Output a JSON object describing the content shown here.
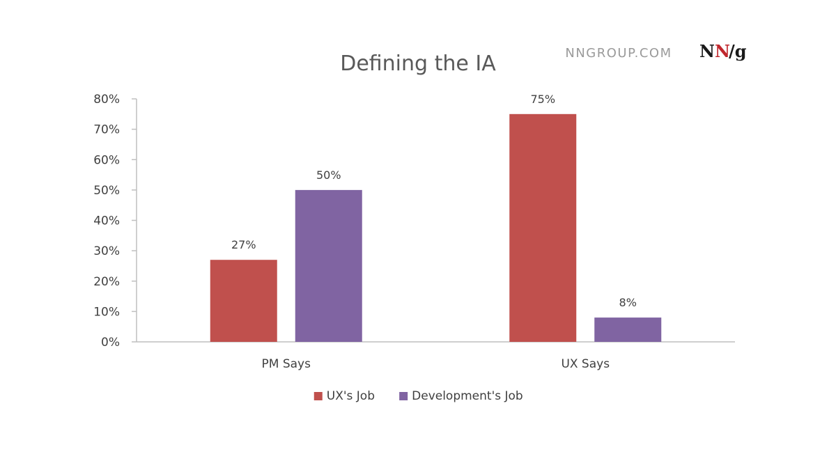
{
  "brand": {
    "site": "NNGROUP.COM",
    "logo": "NN/g",
    "logo_colors": {
      "primary": "#1a1a1a",
      "accent": "#c0272d"
    }
  },
  "chart_data": {
    "type": "bar",
    "title": "Defining the IA",
    "categories": [
      "PM Says",
      "UX Says"
    ],
    "series": [
      {
        "name": "UX's Job",
        "values": [
          27,
          75
        ],
        "labels": [
          "27%",
          "75%"
        ],
        "color": "#c0504d"
      },
      {
        "name": "Development's Job",
        "values": [
          50,
          8
        ],
        "labels": [
          "50%",
          "8%"
        ],
        "color": "#8064a2"
      }
    ],
    "ylim": [
      0,
      80
    ],
    "yticks": [
      "0%",
      "10%",
      "20%",
      "30%",
      "40%",
      "50%",
      "60%",
      "70%",
      "80%"
    ],
    "y_unit": "percent",
    "grid": false,
    "legend_position": "bottom"
  }
}
